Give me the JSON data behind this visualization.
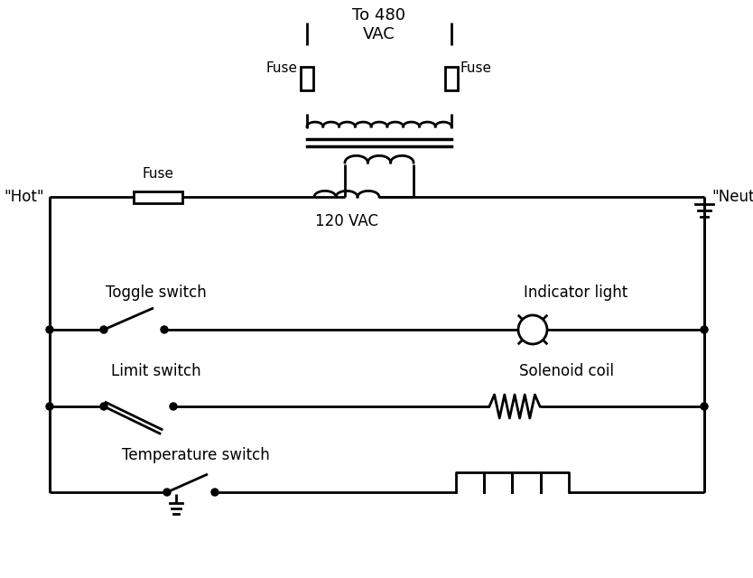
{
  "bg_color": "#ffffff",
  "line_color": "#000000",
  "lw": 2.0,
  "fig_width": 8.34,
  "fig_height": 6.4,
  "labels": {
    "hot": "\"Hot\"",
    "neutral": "\"Neutral\"",
    "fuse_main": "Fuse",
    "fuse_pri_left": "Fuse",
    "fuse_pri_right": "Fuse",
    "to480": "To 480\nVAC",
    "120vac": "120 VAC",
    "toggle": "Toggle switch",
    "indicator": "Indicator light",
    "limit": "Limit switch",
    "solenoid": "Solenoid coil",
    "temperature": "Temperature switch"
  }
}
